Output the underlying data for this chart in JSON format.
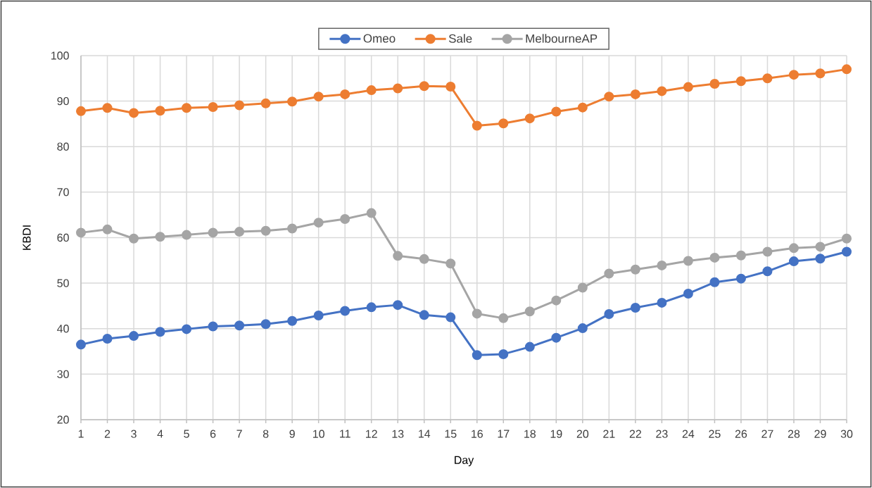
{
  "chart_data": {
    "type": "line",
    "xlabel": "Day",
    "ylabel": "KBDI",
    "categories": [
      "1",
      "2",
      "3",
      "4",
      "5",
      "6",
      "7",
      "8",
      "9",
      "10",
      "11",
      "12",
      "13",
      "14",
      "15",
      "16",
      "17",
      "18",
      "19",
      "20",
      "21",
      "22",
      "23",
      "24",
      "25",
      "26",
      "27",
      "28",
      "29",
      "30"
    ],
    "series": [
      {
        "name": "Omeo",
        "color": "#4472c4",
        "values": [
          36.5,
          37.8,
          38.4,
          39.3,
          39.9,
          40.5,
          40.7,
          41.0,
          41.7,
          42.9,
          43.9,
          44.7,
          45.2,
          43.0,
          42.5,
          34.2,
          34.4,
          36.0,
          38.0,
          40.1,
          43.2,
          44.6,
          45.7,
          47.7,
          50.2,
          51.0,
          52.6,
          54.8,
          55.4,
          56.9
        ]
      },
      {
        "name": "Sale",
        "color": "#ed7d31",
        "values": [
          87.8,
          88.5,
          87.4,
          87.9,
          88.5,
          88.7,
          89.1,
          89.5,
          89.9,
          91.0,
          91.5,
          92.4,
          92.8,
          93.3,
          93.2,
          84.6,
          85.1,
          86.2,
          87.7,
          88.6,
          91.0,
          91.5,
          92.2,
          93.1,
          93.8,
          94.4,
          95.0,
          95.8,
          96.1,
          97.0
        ]
      },
      {
        "name": "MelbourneAP",
        "color": "#a5a5a5",
        "values": [
          61.1,
          61.8,
          59.8,
          60.2,
          60.6,
          61.1,
          61.3,
          61.5,
          62.0,
          63.3,
          64.1,
          65.4,
          56.0,
          55.3,
          54.3,
          43.3,
          42.3,
          43.8,
          46.2,
          49.0,
          52.1,
          53.0,
          53.9,
          54.9,
          55.6,
          56.1,
          56.9,
          57.7,
          58.0,
          59.8
        ]
      }
    ],
    "ylim": [
      20,
      100
    ],
    "yticks": [
      20,
      30,
      40,
      50,
      60,
      70,
      80,
      90,
      100
    ],
    "grid": true,
    "legend": "top",
    "marker": "circle",
    "line_style": "solid"
  }
}
